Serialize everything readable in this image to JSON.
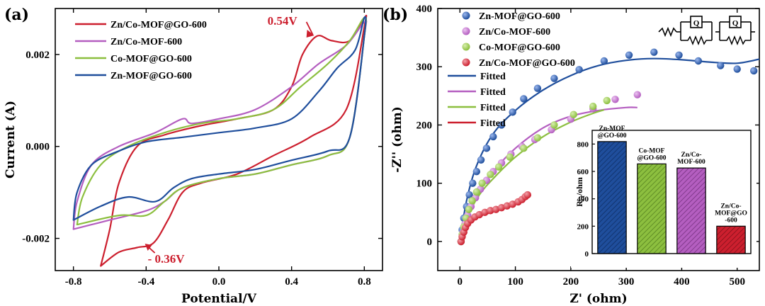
{
  "chart_data": [
    {
      "type": "line",
      "panel_label": "(a)",
      "xlabel": "Potential/V",
      "ylabel": "Current (A)",
      "xlim": [
        -0.9,
        0.9
      ],
      "ylim": [
        -0.0027,
        0.003
      ],
      "xticks": [
        -0.8,
        -0.4,
        0.0,
        0.4,
        0.8
      ],
      "xtick_labels": [
        "-0.8",
        "-0.4",
        "0.0",
        "0.4",
        "0.8"
      ],
      "yticks": [
        -0.002,
        0.0,
        0.002
      ],
      "ytick_labels": [
        "-0.002",
        "0.000",
        "0.002"
      ],
      "legend_position": "top-left",
      "annotations": [
        {
          "text": "0.54V",
          "x": 0.54,
          "y": 0.0024,
          "color": "#cc1f2e"
        },
        {
          "text": "- 0.36V",
          "x": -0.36,
          "y": -0.0021,
          "color": "#cc1f2e"
        }
      ],
      "series": [
        {
          "name": "Zn/Co-MOF@GO-600",
          "color": "#cc1f2e",
          "points": [
            [
              -0.65,
              -0.0026
            ],
            [
              -0.6,
              -0.0018
            ],
            [
              -0.55,
              -0.0008
            ],
            [
              -0.45,
              0.0
            ],
            [
              -0.3,
              0.00025
            ],
            [
              -0.1,
              0.00045
            ],
            [
              0.1,
              0.0006
            ],
            [
              0.3,
              0.0008
            ],
            [
              0.4,
              0.0013
            ],
            [
              0.46,
              0.002
            ],
            [
              0.54,
              0.0024
            ],
            [
              0.62,
              0.0023
            ],
            [
              0.72,
              0.0023
            ],
            [
              0.8,
              0.0028
            ],
            [
              0.8,
              0.0026
            ],
            [
              0.7,
              0.0008
            ],
            [
              0.5,
              0.0002
            ],
            [
              0.3,
              -0.0002
            ],
            [
              0.1,
              -0.0006
            ],
            [
              -0.1,
              -0.0008
            ],
            [
              -0.2,
              -0.001
            ],
            [
              -0.28,
              -0.0016
            ],
            [
              -0.36,
              -0.0021
            ],
            [
              -0.45,
              -0.0022
            ],
            [
              -0.55,
              -0.0023
            ],
            [
              -0.65,
              -0.0026
            ]
          ]
        },
        {
          "name": "Zn/Co-MOF-600",
          "color": "#b45ec0",
          "points": [
            [
              -0.8,
              -0.0018
            ],
            [
              -0.78,
              -0.0012
            ],
            [
              -0.7,
              -0.0004
            ],
            [
              -0.55,
              0.0
            ],
            [
              -0.35,
              0.0003
            ],
            [
              -0.2,
              0.0006
            ],
            [
              -0.15,
              0.0005
            ],
            [
              0.0,
              0.0006
            ],
            [
              0.2,
              0.0008
            ],
            [
              0.4,
              0.0013
            ],
            [
              0.55,
              0.0018
            ],
            [
              0.7,
              0.0022
            ],
            [
              0.8,
              0.0027
            ],
            [
              0.8,
              0.0024
            ],
            [
              0.72,
              0.0002
            ],
            [
              0.6,
              -0.0002
            ],
            [
              0.4,
              -0.0004
            ],
            [
              0.2,
              -0.0006
            ],
            [
              0.0,
              -0.0007
            ],
            [
              -0.2,
              -0.0009
            ],
            [
              -0.3,
              -0.0012
            ],
            [
              -0.4,
              -0.0014
            ],
            [
              -0.6,
              -0.0016
            ],
            [
              -0.8,
              -0.0018
            ]
          ]
        },
        {
          "name": "Co-MOF@GO-600",
          "color": "#8cbf3f",
          "points": [
            [
              -0.78,
              -0.0017
            ],
            [
              -0.75,
              -0.0011
            ],
            [
              -0.65,
              -0.0004
            ],
            [
              -0.5,
              0.0
            ],
            [
              -0.3,
              0.0003
            ],
            [
              -0.1,
              0.0005
            ],
            [
              0.1,
              0.0006
            ],
            [
              0.3,
              0.0008
            ],
            [
              0.45,
              0.0013
            ],
            [
              0.6,
              0.0018
            ],
            [
              0.72,
              0.0023
            ],
            [
              0.8,
              0.0028
            ],
            [
              0.8,
              0.0024
            ],
            [
              0.72,
              0.0002
            ],
            [
              0.6,
              -0.0002
            ],
            [
              0.4,
              -0.0004
            ],
            [
              0.2,
              -0.0006
            ],
            [
              0.0,
              -0.0007
            ],
            [
              -0.2,
              -0.0009
            ],
            [
              -0.3,
              -0.0012
            ],
            [
              -0.4,
              -0.0015
            ],
            [
              -0.55,
              -0.0015
            ],
            [
              -0.78,
              -0.0017
            ]
          ]
        },
        {
          "name": "Zn-MOF@GO-600",
          "color": "#1f4e9c",
          "points": [
            [
              -0.8,
              -0.0016
            ],
            [
              -0.78,
              -0.001
            ],
            [
              -0.7,
              -0.0004
            ],
            [
              -0.55,
              -0.0001
            ],
            [
              -0.4,
              0.0001
            ],
            [
              -0.2,
              0.0002
            ],
            [
              0.0,
              0.0003
            ],
            [
              0.2,
              0.0004
            ],
            [
              0.4,
              0.0006
            ],
            [
              0.55,
              0.0012
            ],
            [
              0.65,
              0.0017
            ],
            [
              0.75,
              0.0021
            ],
            [
              0.8,
              0.0028
            ],
            [
              0.8,
              0.0024
            ],
            [
              0.72,
              0.0002
            ],
            [
              0.6,
              -0.0001
            ],
            [
              0.4,
              -0.0003
            ],
            [
              0.2,
              -0.0005
            ],
            [
              0.0,
              -0.0006
            ],
            [
              -0.15,
              -0.0007
            ],
            [
              -0.25,
              -0.0009
            ],
            [
              -0.35,
              -0.0012
            ],
            [
              -0.5,
              -0.0011
            ],
            [
              -0.65,
              -0.0013
            ],
            [
              -0.8,
              -0.0016
            ]
          ]
        }
      ]
    },
    {
      "type": "scatter",
      "panel_label": "(b)",
      "xlabel": "Z' (ohm)",
      "ylabel": "-Z'' (ohm)",
      "xlim": [
        -40,
        540
      ],
      "ylim": [
        -50,
        400
      ],
      "xticks": [
        0,
        100,
        200,
        300,
        400,
        500
      ],
      "xtick_labels": [
        "0",
        "100",
        "200",
        "300",
        "400",
        "500"
      ],
      "yticks": [
        0,
        100,
        200,
        300,
        400
      ],
      "ytick_labels": [
        "0",
        "100",
        "200",
        "300",
        "400"
      ],
      "legend_position": "top-left",
      "fit_label": "Fitted",
      "circuit_labels": [
        "Q",
        "Q"
      ],
      "series": [
        {
          "name": "Zn-MOF@GO-600",
          "color": "#1f4e9c",
          "points": [
            [
              2,
              0
            ],
            [
              4,
              20
            ],
            [
              7,
              40
            ],
            [
              12,
              60
            ],
            [
              17,
              80
            ],
            [
              23,
              100
            ],
            [
              30,
              120
            ],
            [
              38,
              140
            ],
            [
              48,
              160
            ],
            [
              60,
              180
            ],
            [
              75,
              200
            ],
            [
              95,
              222
            ],
            [
              115,
              245
            ],
            [
              140,
              263
            ],
            [
              170,
              280
            ],
            [
              215,
              295
            ],
            [
              260,
              310
            ],
            [
              305,
              320
            ],
            [
              350,
              325
            ],
            [
              395,
              320
            ],
            [
              430,
              310
            ],
            [
              470,
              302
            ],
            [
              500,
              296
            ],
            [
              530,
              293
            ]
          ],
          "fit": [
            [
              0,
              0
            ],
            [
              12,
              70
            ],
            [
              30,
              130
            ],
            [
              60,
              185
            ],
            [
              100,
              225
            ],
            [
              150,
              260
            ],
            [
              200,
              285
            ],
            [
              250,
              302
            ],
            [
              300,
              311
            ],
            [
              350,
              314
            ],
            [
              400,
              312
            ],
            [
              450,
              308
            ],
            [
              500,
              306
            ],
            [
              540,
              313
            ]
          ]
        },
        {
          "name": "Zn/Co-MOF-600",
          "color": "#b45ec0",
          "points": [
            [
              2,
              0
            ],
            [
              5,
              15
            ],
            [
              9,
              30
            ],
            [
              14,
              45
            ],
            [
              20,
              60
            ],
            [
              28,
              75
            ],
            [
              37,
              90
            ],
            [
              48,
              105
            ],
            [
              60,
              120
            ],
            [
              75,
              135
            ],
            [
              92,
              150
            ],
            [
              112,
              163
            ],
            [
              135,
              175
            ],
            [
              165,
              192
            ],
            [
              200,
              210
            ],
            [
              240,
              228
            ],
            [
              280,
              244
            ],
            [
              320,
              252
            ]
          ],
          "fit": [
            [
              0,
              0
            ],
            [
              15,
              45
            ],
            [
              35,
              85
            ],
            [
              60,
              120
            ],
            [
              100,
              160
            ],
            [
              150,
              195
            ],
            [
              200,
              215
            ],
            [
              250,
              225
            ],
            [
              300,
              230
            ],
            [
              320,
              230
            ]
          ]
        },
        {
          "name": "Co-MOF@GO-600",
          "color": "#8cbf3f",
          "points": [
            [
              2,
              0
            ],
            [
              4,
              12
            ],
            [
              7,
              25
            ],
            [
              11,
              40
            ],
            [
              16,
              55
            ],
            [
              22,
              70
            ],
            [
              30,
              85
            ],
            [
              40,
              100
            ],
            [
              55,
              115
            ],
            [
              70,
              128
            ],
            [
              90,
              145
            ],
            [
              115,
              160
            ],
            [
              140,
              178
            ],
            [
              170,
              200
            ],
            [
              205,
              218
            ],
            [
              240,
              232
            ],
            [
              265,
              242
            ]
          ],
          "fit": [
            [
              0,
              0
            ],
            [
              15,
              45
            ],
            [
              35,
              80
            ],
            [
              60,
              108
            ],
            [
              100,
              145
            ],
            [
              150,
              180
            ],
            [
              200,
              205
            ],
            [
              240,
              220
            ],
            [
              260,
              226
            ]
          ]
        },
        {
          "name": "Zn/Co-MOF@GO-600",
          "color": "#cc1f2e",
          "points": [
            [
              2,
              0
            ],
            [
              4,
              8
            ],
            [
              7,
              16
            ],
            [
              10,
              24
            ],
            [
              14,
              31
            ],
            [
              20,
              37
            ],
            [
              27,
              42
            ],
            [
              35,
              46
            ],
            [
              45,
              50
            ],
            [
              55,
              53
            ],
            [
              65,
              55
            ],
            [
              75,
              58
            ],
            [
              85,
              61
            ],
            [
              95,
              64
            ],
            [
              105,
              68
            ],
            [
              112,
              72
            ],
            [
              118,
              77
            ],
            [
              122,
              80
            ]
          ],
          "fit": [
            [
              0,
              0
            ],
            [
              6,
              15
            ],
            [
              14,
              28
            ],
            [
              25,
              38
            ],
            [
              40,
              45
            ],
            [
              60,
              51
            ],
            [
              80,
              58
            ],
            [
              100,
              67
            ],
            [
              120,
              78
            ]
          ]
        }
      ]
    },
    {
      "type": "bar",
      "inset": true,
      "ylabel": "Rct/ohm",
      "ylabel_main": "R",
      "ylabel_sub": "ct",
      "ylabel_rest": "/ohm",
      "ylim": [
        0,
        900
      ],
      "yticks": [
        0,
        200,
        400,
        600,
        800
      ],
      "ytick_labels": [
        "0",
        "200",
        "400",
        "600",
        "800"
      ],
      "categories": [
        "Zn-MOF@GO-600",
        "Co-MOF@GO-600",
        "Zn/Co-MOF-600",
        "Zn/Co-MOF@GO-600"
      ],
      "values": [
        818,
        655,
        625,
        200
      ],
      "colors": [
        "#1f4e9c",
        "#8cbf3f",
        "#b45ec0",
        "#cc1f2e"
      ],
      "bar_labels": [
        [
          "Zn-MOF",
          "@GO-600"
        ],
        [
          "Co-MOF",
          "@GO-600"
        ],
        [
          "Zn/Co-",
          "MOF-600"
        ],
        [
          "Zn/Co-",
          "MOF@GO",
          "-600"
        ]
      ]
    }
  ]
}
